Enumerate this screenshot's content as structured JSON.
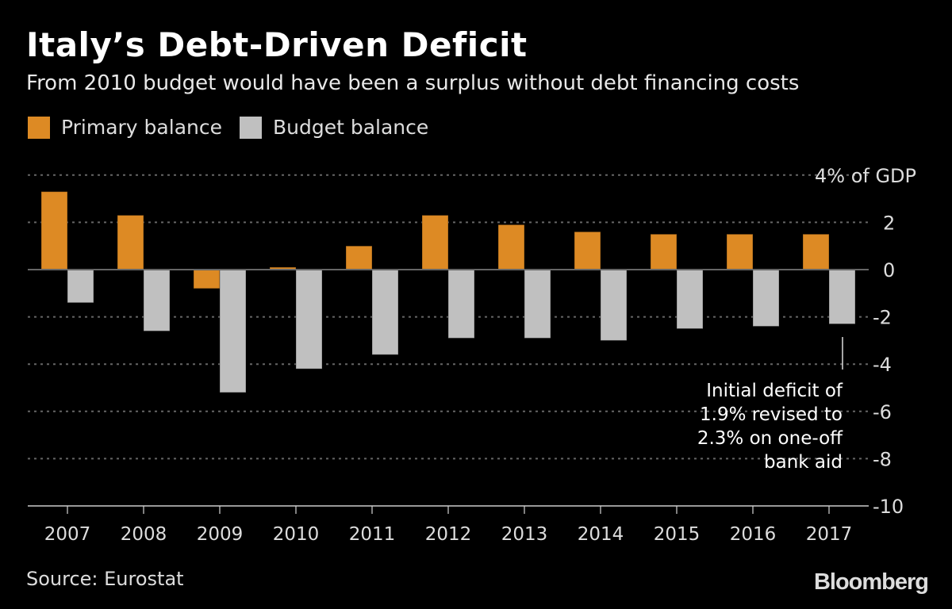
{
  "chart_data": {
    "type": "bar",
    "title": "Italy’s Debt-Driven Deficit",
    "subtitle": "From 2010 budget would have been a surplus without debt financing costs",
    "categories": [
      "2007",
      "2008",
      "2009",
      "2010",
      "2011",
      "2012",
      "2013",
      "2014",
      "2015",
      "2016",
      "2017"
    ],
    "series": [
      {
        "name": "Primary balance",
        "color": "#dd8a24",
        "values": [
          3.3,
          2.3,
          -0.8,
          0.1,
          1.0,
          2.3,
          1.9,
          1.6,
          1.5,
          1.5,
          1.5
        ]
      },
      {
        "name": "Budget balance",
        "color": "#c0c0c0",
        "values": [
          -1.4,
          -2.6,
          -5.2,
          -4.2,
          -3.6,
          -2.9,
          -2.9,
          -3.0,
          -2.5,
          -2.4,
          -2.3
        ]
      }
    ],
    "ylim": [
      -10,
      4
    ],
    "yticks": [
      4,
      2,
      0,
      -2,
      -4,
      -6,
      -8,
      -10
    ],
    "ytick_labels": [
      "4% of GDP",
      "2",
      "0",
      "-2",
      "-4",
      "-6",
      "-8",
      "-10"
    ],
    "grid": true,
    "legend_position": "top-left",
    "annotation": {
      "category": "2017",
      "lines": [
        "Initial deficit of",
        "1.9% revised to",
        "2.3% on one-off",
        "bank aid"
      ]
    }
  },
  "source": "Source: Eurostat",
  "brand": "Bloomberg"
}
